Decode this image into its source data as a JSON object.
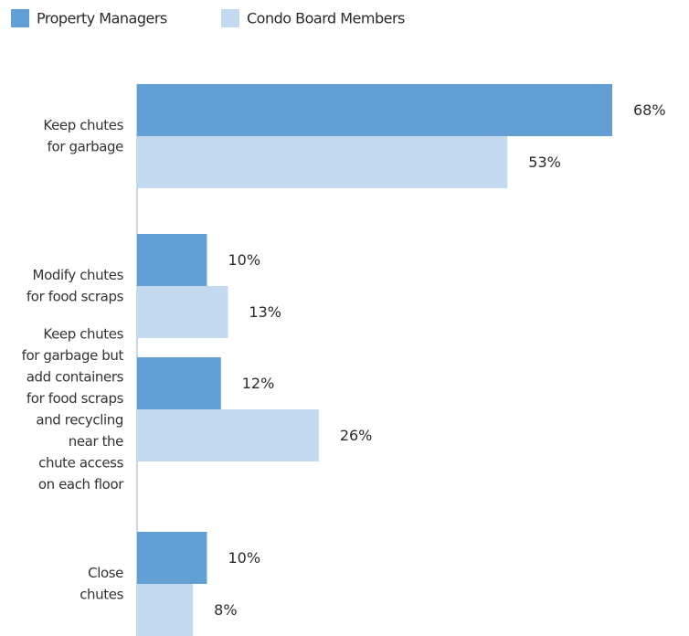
{
  "chart_data": {
    "type": "bar",
    "orientation": "horizontal",
    "categories": [
      [
        "Keep chutes",
        "for garbage"
      ],
      [
        "Modify chutes",
        "for food scraps"
      ],
      [
        "Keep chutes",
        "for garbage but",
        "add containers",
        "for food scraps",
        "and recycling",
        "near the",
        "chute access",
        "on each floor"
      ],
      [
        "Close",
        "chutes"
      ]
    ],
    "series": [
      {
        "name": "Property Managers",
        "color": "#619fd5",
        "values": [
          68,
          10,
          12,
          10
        ],
        "value_labels": [
          "68%",
          "10%",
          "12%",
          "10%"
        ]
      },
      {
        "name": "Condo Board Members",
        "color": "#c2d9f0",
        "values": [
          53,
          13,
          26,
          8
        ],
        "value_labels": [
          "53%",
          "13%",
          "26%",
          "8%"
        ]
      }
    ],
    "legend": "top-left"
  }
}
